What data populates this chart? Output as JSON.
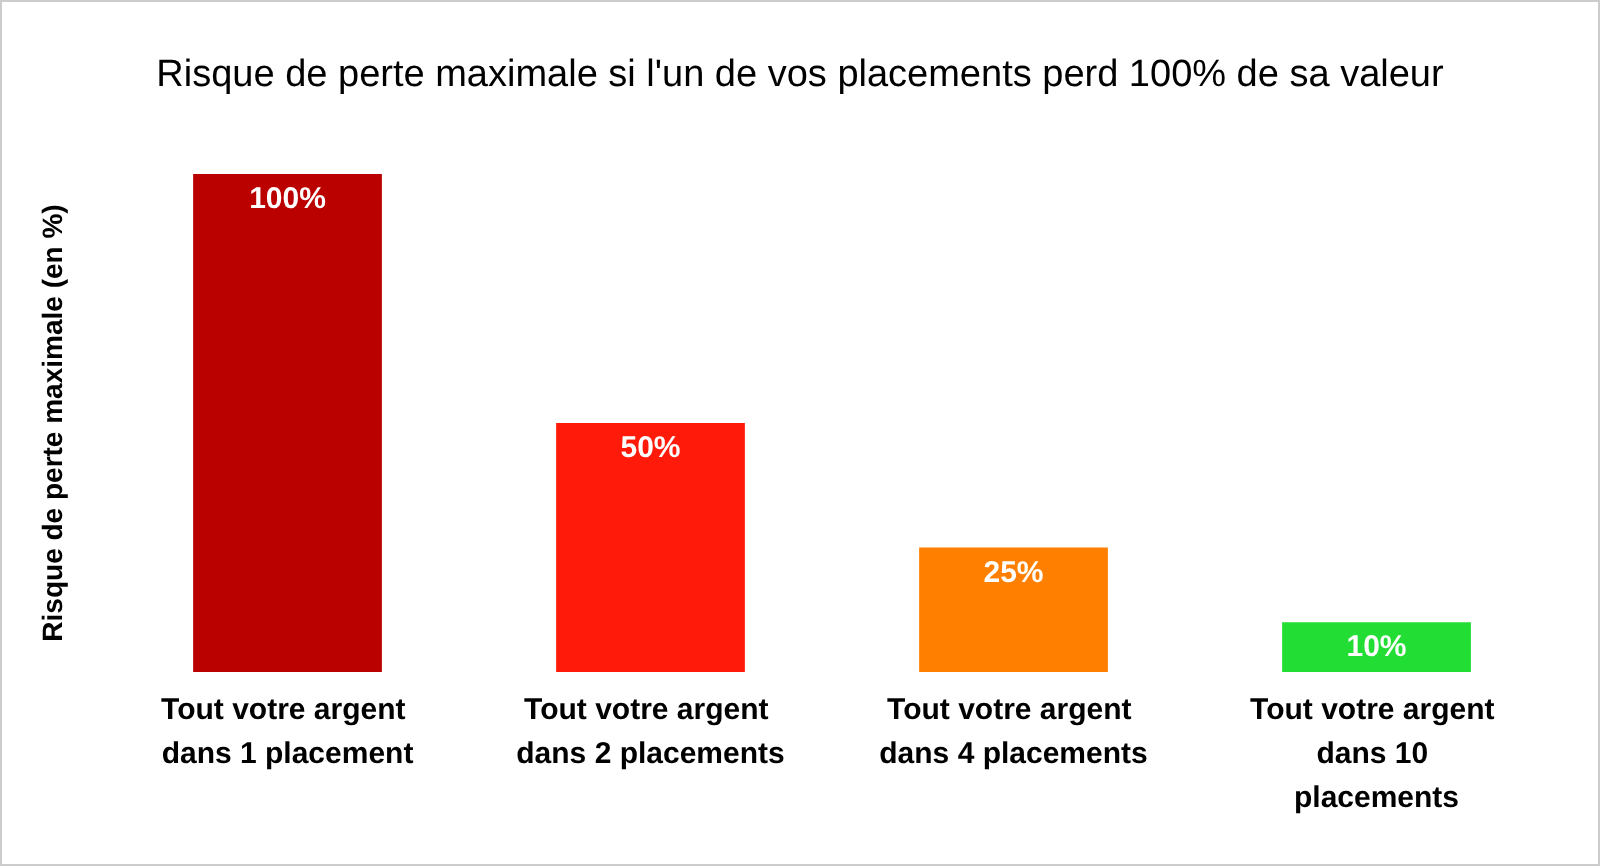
{
  "chart_data": {
    "type": "bar",
    "title": "Risque de perte maximale si l'un de vos placements perd 100% de sa valeur",
    "ylabel": "Risque de perte maximale (en %)",
    "categories": [
      "Tout votre argent dans 1 placement",
      "Tout votre argent dans 2 placements",
      "Tout votre argent dans 4 placements",
      "Tout votre argent dans 10 placements"
    ],
    "values": [
      100,
      50,
      25,
      10
    ],
    "colors": [
      "#bb0000",
      "#ff1a0a",
      "#ff7f00",
      "#22dd33"
    ],
    "value_labels": [
      "100%",
      "50%",
      "25%",
      "10%"
    ],
    "ylim": [
      0,
      100
    ],
    "grid": false
  }
}
